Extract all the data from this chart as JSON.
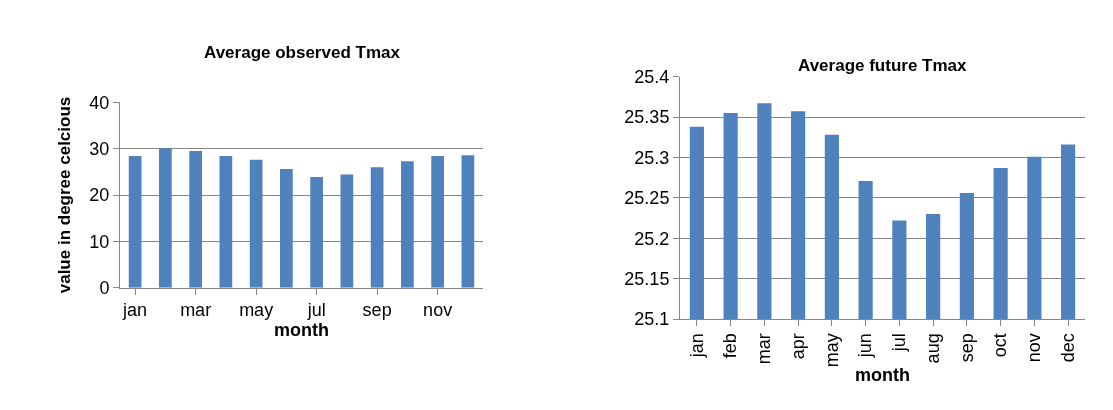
{
  "chart_data": [
    {
      "type": "bar",
      "title": "Average observed Tmax",
      "xlabel": "month",
      "ylabel": "value in degree celcious",
      "categories": [
        "jan",
        null,
        "mar",
        null,
        "may",
        null,
        "jul",
        null,
        "sep",
        null,
        "nov",
        null
      ],
      "values": [
        28.4,
        30.1,
        29.5,
        28.4,
        27.6,
        25.6,
        23.9,
        24.4,
        26.0,
        27.3,
        28.4,
        28.6
      ],
      "color": "#4f81bd",
      "ylim": [
        0,
        40
      ],
      "yticks": [
        0,
        10,
        20,
        30,
        40
      ],
      "grid": "y"
    },
    {
      "type": "bar",
      "title": "Average future Tmax",
      "xlabel": "month",
      "categories": [
        "jan",
        "feb",
        "mar",
        "apr",
        "may",
        "jun",
        "jul",
        "aug",
        "sep",
        "oct",
        "nov",
        "dec"
      ],
      "values": [
        25.338,
        25.355,
        25.367,
        25.357,
        25.328,
        25.271,
        25.222,
        25.23,
        25.256,
        25.287,
        25.301,
        25.316
      ],
      "color": "#4f81bd",
      "ylim": [
        25.1,
        25.4
      ],
      "yticks": [
        25.1,
        25.15,
        25.2,
        25.25,
        25.3,
        25.35,
        25.4
      ],
      "grid": "y"
    }
  ]
}
